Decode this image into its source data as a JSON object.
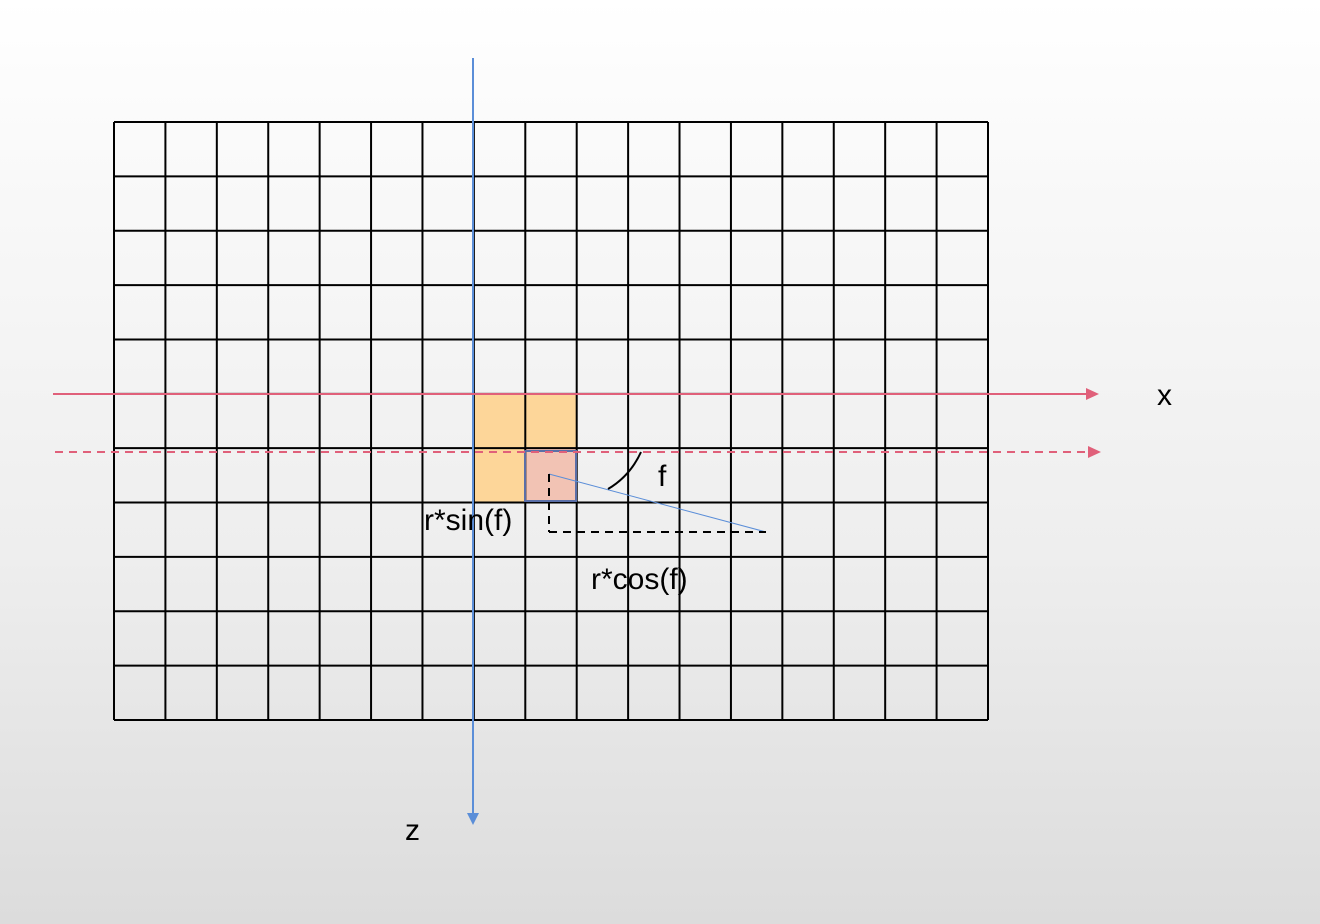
{
  "labels": {
    "x_axis": "x",
    "z_axis": "z",
    "angle": "f",
    "sin_term": "r*sin(f)",
    "cos_term": "r*cos(f)"
  },
  "grid": {
    "columns": 17,
    "rows": 11
  },
  "highlighted_cells": [
    {
      "col": 7,
      "row": 5,
      "kind": "orange"
    },
    {
      "col": 8,
      "row": 5,
      "kind": "orange"
    },
    {
      "col": 7,
      "row": 6,
      "kind": "orange"
    },
    {
      "col": 8,
      "row": 6,
      "kind": "pink"
    }
  ],
  "colors": {
    "grid_line": "#000000",
    "x_axis": "#e0607a",
    "z_axis": "#5b8ed8",
    "orange_cell": "#fdd699",
    "pink_cell": "#f2c3b4",
    "pink_cell_border": "#5a6fa8",
    "ray": "#5b8ed8"
  }
}
